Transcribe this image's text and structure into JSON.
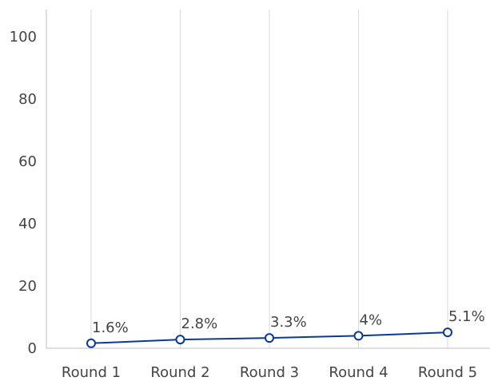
{
  "chart_data": {
    "type": "line",
    "categories": [
      "Round 1",
      "Round 2",
      "Round 3",
      "Round 4",
      "Round 5"
    ],
    "series": [
      {
        "values": [
          1.6,
          2.8,
          3.3,
          4,
          5.1
        ],
        "labels": [
          "1.6%",
          "2.8%",
          "3.3%",
          "4%",
          "5.1%"
        ],
        "color": "#0b3a8f"
      }
    ],
    "ylim": [
      0,
      100
    ],
    "yticks": [
      "0",
      "20",
      "40",
      "60",
      "80",
      "100"
    ],
    "title": "",
    "xlabel": "",
    "ylabel": "",
    "grid": "vertical",
    "marker": "open-circle"
  }
}
